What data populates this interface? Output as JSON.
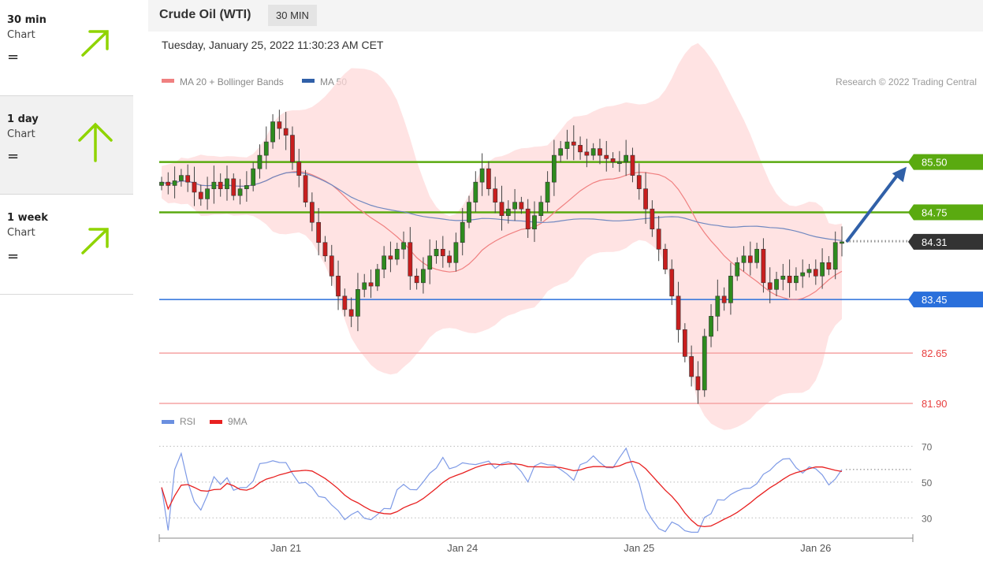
{
  "sidebar": {
    "items": [
      {
        "name": "30 min",
        "sub": "Chart",
        "signal": "=",
        "arrow": "up-right-arrow-icon",
        "color": "#8fd400"
      },
      {
        "name": "1 day",
        "sub": "Chart",
        "signal": "=",
        "arrow": "up-arrow-icon",
        "color": "#8fd400"
      },
      {
        "name": "1 week",
        "sub": "Chart",
        "signal": "=",
        "arrow": "up-right-arrow-icon",
        "color": "#8fd400"
      }
    ]
  },
  "header": {
    "title": "Crude Oil (WTI)",
    "timeframe": "30 MIN",
    "datetime": "Tuesday, January 25, 2022 11:30:23 AM CET"
  },
  "chart_data": {
    "type": "candlestick",
    "legend": [
      {
        "label": "MA 20 + Bollinger Bands",
        "color": "#f08080"
      },
      {
        "label": "MA 50",
        "color": "#3060a8"
      }
    ],
    "credit": "Research © 2022 Trading Central",
    "x_labels": [
      "Jan 21",
      "Jan 24",
      "Jan 25",
      "Jan 26"
    ],
    "y_range": [
      81.9,
      86.6
    ],
    "levels": [
      {
        "value": 85.5,
        "label": "85.50",
        "kind": "resistance",
        "color": "#5aaa10"
      },
      {
        "value": 84.75,
        "label": "84.75",
        "kind": "resistance",
        "color": "#5aaa10"
      },
      {
        "value": 84.31,
        "label": "84.31",
        "kind": "last-price",
        "color": "#333333"
      },
      {
        "value": 83.45,
        "label": "83.45",
        "kind": "pivot",
        "color": "#2a6fdb"
      },
      {
        "value": 82.65,
        "label": "82.65",
        "kind": "support",
        "color": "#e84040"
      },
      {
        "value": 81.9,
        "label": "81.90",
        "kind": "support",
        "color": "#e84040"
      }
    ],
    "projection": {
      "from": 84.31,
      "to": 85.5,
      "color": "#3060a8"
    },
    "closes": [
      85.2,
      85.15,
      85.22,
      85.3,
      85.2,
      85.05,
      84.95,
      85.1,
      85.2,
      85.1,
      85.25,
      85.0,
      85.1,
      85.15,
      85.4,
      85.6,
      85.8,
      86.1,
      86.0,
      85.9,
      85.5,
      85.3,
      84.9,
      84.6,
      84.3,
      84.1,
      83.8,
      83.5,
      83.3,
      83.2,
      83.6,
      83.7,
      83.65,
      83.9,
      84.1,
      84.05,
      84.2,
      84.3,
      83.8,
      83.7,
      83.9,
      84.1,
      84.2,
      84.1,
      84.0,
      84.3,
      84.6,
      84.9,
      85.2,
      85.4,
      85.1,
      84.9,
      84.7,
      84.8,
      84.9,
      84.8,
      84.5,
      84.7,
      84.9,
      85.2,
      85.6,
      85.7,
      85.8,
      85.75,
      85.65,
      85.6,
      85.7,
      85.6,
      85.55,
      85.5,
      85.5,
      85.6,
      85.3,
      85.1,
      84.8,
      84.5,
      84.2,
      83.9,
      83.5,
      83.0,
      82.6,
      82.3,
      82.1,
      82.9,
      83.2,
      83.5,
      83.4,
      83.8,
      84.0,
      84.1,
      84.0,
      84.2,
      83.7,
      83.6,
      83.75,
      83.8,
      83.7,
      83.8,
      83.85,
      83.9,
      83.8,
      84.0,
      83.9,
      84.3,
      84.31
    ],
    "rsi": {
      "series": [
        {
          "name": "RSI",
          "color": "#6a8fe0"
        },
        {
          "name": "9MA",
          "color": "#e82020"
        }
      ],
      "levels": [
        70,
        50,
        30
      ],
      "y_range": [
        20,
        75
      ],
      "last": 57
    }
  }
}
